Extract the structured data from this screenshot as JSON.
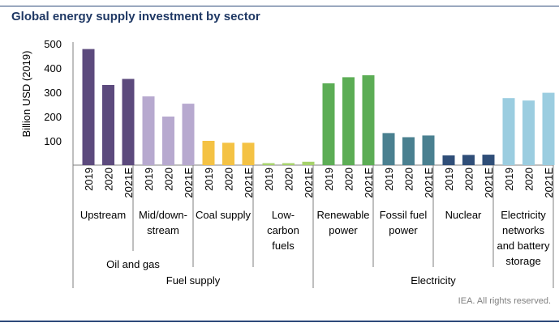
{
  "header": {
    "title": "Global energy supply investment by sector"
  },
  "footer": {
    "credit": "IEA. All rights reserved."
  },
  "chart_data": {
    "type": "bar",
    "title": "Global energy supply investment by sector",
    "ylabel": "Billion USD (2019)",
    "xlabel": "",
    "ylim": [
      0,
      500
    ],
    "yticks": [
      100,
      200,
      300,
      400,
      500
    ],
    "grid": false,
    "years": [
      "2019",
      "2020",
      "2021E"
    ],
    "series": [
      {
        "name": "Upstream",
        "color": "#5c4a7d",
        "values": [
          478,
          330,
          355
        ]
      },
      {
        "name": "Mid/down-stream",
        "color": "#b7a9cf",
        "values": [
          283,
          200,
          253
        ]
      },
      {
        "name": "Coal supply",
        "color": "#f4c244",
        "values": [
          100,
          92,
          92
        ]
      },
      {
        "name": "Low-carbon fuels",
        "color": "#a6d26b",
        "values": [
          8,
          8,
          14
        ]
      },
      {
        "name": "Renewable power",
        "color": "#5cad55",
        "values": [
          337,
          362,
          370
        ]
      },
      {
        "name": "Fossil fuel power",
        "color": "#4a8090",
        "values": [
          132,
          115,
          122
        ]
      },
      {
        "name": "Nuclear",
        "color": "#2f4e78",
        "values": [
          40,
          42,
          43
        ]
      },
      {
        "name": "Electricity networks and battery storage",
        "color": "#9bcde0",
        "values": [
          276,
          266,
          298
        ]
      }
    ],
    "category_labels": [
      [
        "Upstream"
      ],
      [
        "Mid/down-",
        "stream"
      ],
      [
        "Coal supply"
      ],
      [
        "Low-",
        "carbon",
        "fuels"
      ],
      [
        "Renewable",
        "power"
      ],
      [
        "Fossil fuel",
        "power"
      ],
      [
        "Nuclear"
      ],
      [
        "Electricity",
        "networks",
        "and battery",
        "storage"
      ]
    ],
    "groups": {
      "oil_and_gas": "Oil and gas",
      "fuel_supply": "Fuel supply",
      "electricity": "Electricity"
    }
  }
}
